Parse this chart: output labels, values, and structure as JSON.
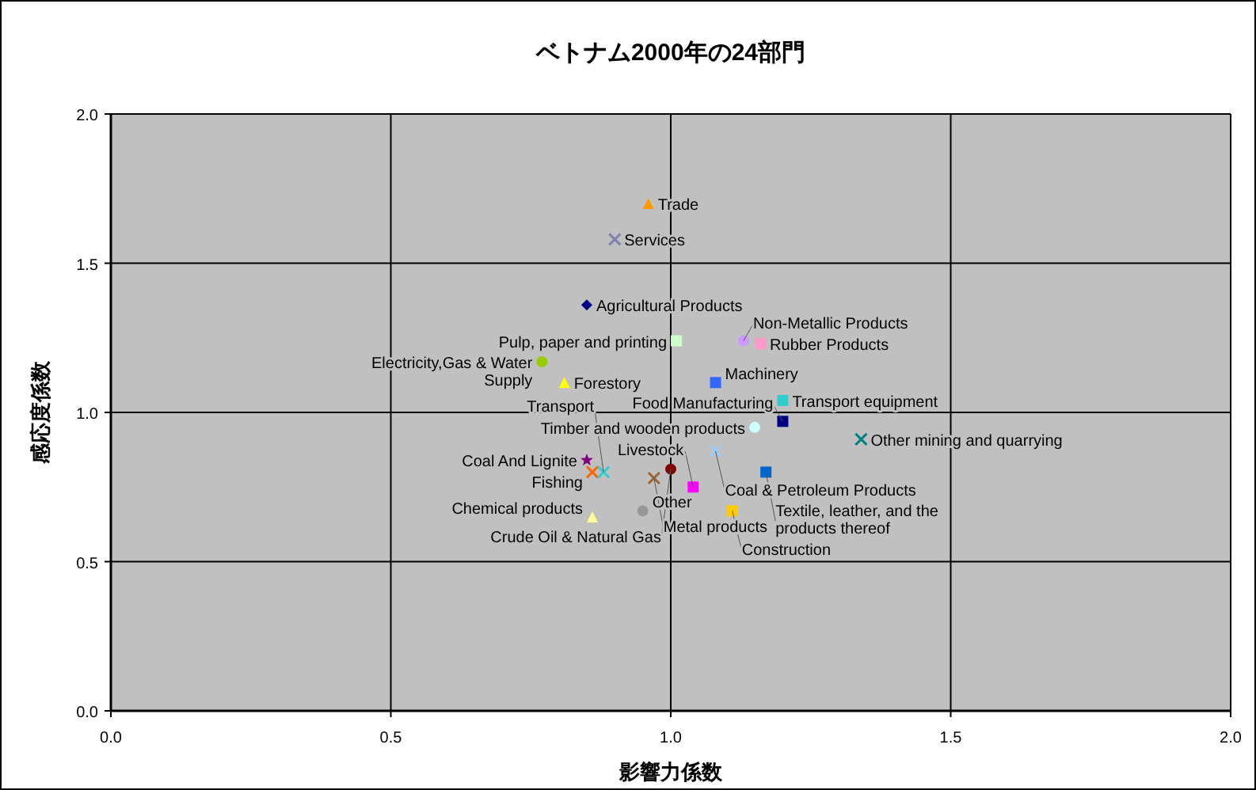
{
  "chart_data": {
    "type": "scatter",
    "title": "ベトナム2000年の24部門",
    "xlabel": "影響力係数",
    "ylabel": "感応度係数",
    "xlim": [
      0,
      2
    ],
    "ylim": [
      0,
      2
    ],
    "xticks": [
      {
        "value": 0,
        "label": "0.0"
      },
      {
        "value": 0.5,
        "label": "0.5"
      },
      {
        "value": 1,
        "label": "1.0"
      },
      {
        "value": 1.5,
        "label": "1.5"
      },
      {
        "value": 2,
        "label": "2.0"
      }
    ],
    "yticks": [
      {
        "value": 0,
        "label": "0.0"
      },
      {
        "value": 0.5,
        "label": "0.5"
      },
      {
        "value": 1,
        "label": "1.0"
      },
      {
        "value": 1.5,
        "label": "1.5"
      },
      {
        "value": 2,
        "label": "2.0"
      }
    ],
    "grid": true,
    "series": [
      {
        "name": "Trade",
        "color": "#ff9900",
        "marker": "triangle",
        "x": [
          0.96
        ],
        "values": [
          1.7
        ]
      },
      {
        "name": "Services",
        "color": "#8080b0",
        "marker": "cross",
        "x": [
          0.9
        ],
        "values": [
          1.58
        ]
      },
      {
        "name": "Agricultural Products",
        "color": "#000080",
        "marker": "diamond",
        "x": [
          0.85
        ],
        "values": [
          1.36
        ]
      },
      {
        "name": "Pulp, paper and printing",
        "color": "#ccffcc",
        "marker": "square",
        "x": [
          1.01
        ],
        "values": [
          1.24
        ]
      },
      {
        "name": "Non-Metallic Products",
        "color": "#cc99ff",
        "marker": "circle",
        "x": [
          1.13
        ],
        "values": [
          1.24
        ]
      },
      {
        "name": "Rubber Products",
        "color": "#ff99cc",
        "marker": "square",
        "x": [
          1.16
        ],
        "values": [
          1.23
        ]
      },
      {
        "name": "Electricity,Gas & Water\nSupply",
        "color": "#99cc00",
        "marker": "circle",
        "x": [
          0.77
        ],
        "values": [
          1.17
        ]
      },
      {
        "name": "Forestory",
        "color": "#ffff00",
        "marker": "triangle",
        "x": [
          0.81
        ],
        "values": [
          1.1
        ]
      },
      {
        "name": "Machinery",
        "color": "#3366ff",
        "marker": "square",
        "x": [
          1.08
        ],
        "values": [
          1.1
        ]
      },
      {
        "name": "Transport equipment",
        "color": "#33cccc",
        "marker": "square",
        "x": [
          1.2
        ],
        "values": [
          1.04
        ]
      },
      {
        "name": "Food Manufacturing",
        "color": "#000080",
        "marker": "square",
        "x": [
          1.2
        ],
        "values": [
          0.97
        ]
      },
      {
        "name": "Timber and wooden products",
        "color": "#ccffff",
        "marker": "circle",
        "x": [
          1.15
        ],
        "values": [
          0.95
        ]
      },
      {
        "name": "Other mining and quarrying",
        "color": "#008080",
        "marker": "cross",
        "x": [
          1.34
        ],
        "values": [
          0.91
        ]
      },
      {
        "name": "Coal & Petroleum Products",
        "color": "#99ccff",
        "marker": "cross",
        "x": [
          1.08
        ],
        "values": [
          0.87
        ]
      },
      {
        "name": "Textile, leather, and the\nproducts thereof",
        "color": "#0066cc",
        "marker": "square",
        "x": [
          1.17
        ],
        "values": [
          0.8
        ]
      },
      {
        "name": "Crude Oil & Natural Gas",
        "color": "#800000",
        "marker": "circle",
        "x": [
          1.0
        ],
        "values": [
          0.81
        ]
      },
      {
        "name": "Coal And Lignite",
        "color": "#800080",
        "marker": "star",
        "x": [
          0.85
        ],
        "values": [
          0.84
        ]
      },
      {
        "name": "Fishing",
        "color": "#ff6600",
        "marker": "cross",
        "x": [
          0.86
        ],
        "values": [
          0.8
        ]
      },
      {
        "name": "Transport",
        "color": "#33cccc",
        "marker": "cross",
        "x": [
          0.88
        ],
        "values": [
          0.8
        ]
      },
      {
        "name": "Metal products",
        "color": "#996633",
        "marker": "cross",
        "x": [
          0.97
        ],
        "values": [
          0.78
        ]
      },
      {
        "name": "Livestock",
        "color": "#ff00ff",
        "marker": "square",
        "x": [
          1.04
        ],
        "values": [
          0.75
        ]
      },
      {
        "name": "Other",
        "color": "#969696",
        "marker": "circle",
        "x": [
          0.95
        ],
        "values": [
          0.67
        ]
      },
      {
        "name": "Construction",
        "color": "#ffcc00",
        "marker": "square",
        "x": [
          1.11
        ],
        "values": [
          0.67
        ]
      },
      {
        "name": "Chemical products",
        "color": "#ffff99",
        "marker": "triangle",
        "x": [
          0.86
        ],
        "values": [
          0.65
        ]
      }
    ]
  }
}
